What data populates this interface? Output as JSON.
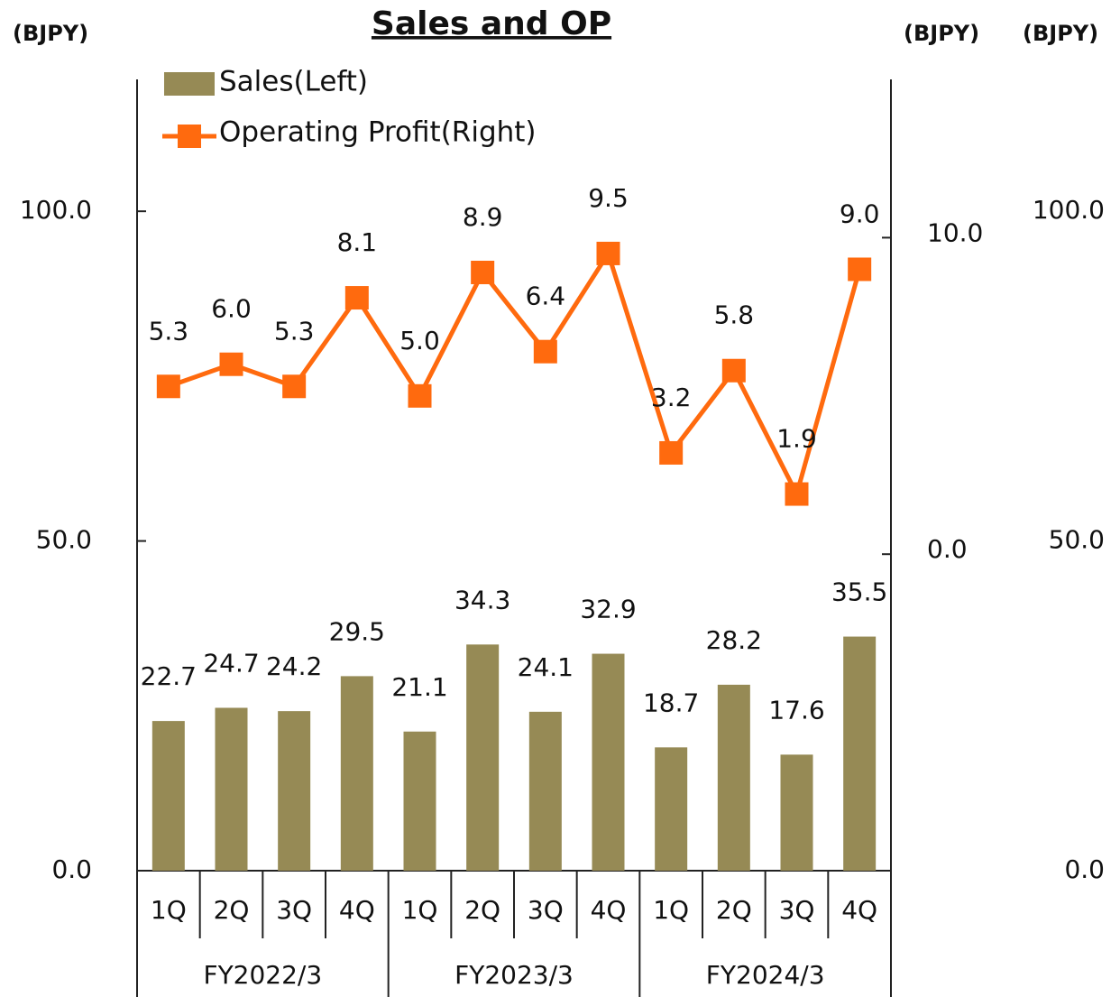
{
  "chart_data": {
    "type": "bar_line",
    "title": "Sales and OP",
    "axis_units": [
      "(BJPY)",
      "(BJPY)",
      "(BJPY)"
    ],
    "categories": [
      "1Q",
      "2Q",
      "3Q",
      "4Q",
      "1Q",
      "2Q",
      "3Q",
      "4Q",
      "1Q",
      "2Q",
      "3Q",
      "4Q"
    ],
    "groups": [
      "FY2022/3",
      "FY2023/3",
      "FY2024/3"
    ],
    "series": [
      {
        "name": "Sales(Left)",
        "type": "bar",
        "color": "#968a55",
        "values": [
          22.7,
          24.7,
          24.2,
          29.5,
          21.1,
          34.3,
          24.1,
          32.9,
          18.7,
          28.2,
          17.6,
          35.5
        ]
      },
      {
        "name": "Operating Profit(Right)",
        "type": "line",
        "axis": "y2",
        "color": "#ff6a0e",
        "values": [
          5.3,
          6.0,
          5.3,
          8.1,
          5.0,
          8.9,
          6.4,
          9.5,
          3.2,
          5.8,
          1.9,
          9.0
        ],
        "value_labels": [
          "5.3",
          "6.0",
          "5.3",
          "8.1",
          "5.0",
          "8.9",
          "6.4",
          "9.5",
          "3.2",
          "5.8",
          "1.9",
          "9.0"
        ]
      }
    ],
    "ylim": [
      0,
      120
    ],
    "yticks": [
      {
        "value": 0,
        "label": "0.0"
      },
      {
        "value": 50,
        "label": "50.0"
      },
      {
        "value": 100,
        "label": "100.0"
      }
    ],
    "y2lim": [
      -10,
      15
    ],
    "y2ticks": [
      {
        "value": 0,
        "label": "0.0"
      },
      {
        "value": 10,
        "label": "10.0"
      }
    ]
  }
}
